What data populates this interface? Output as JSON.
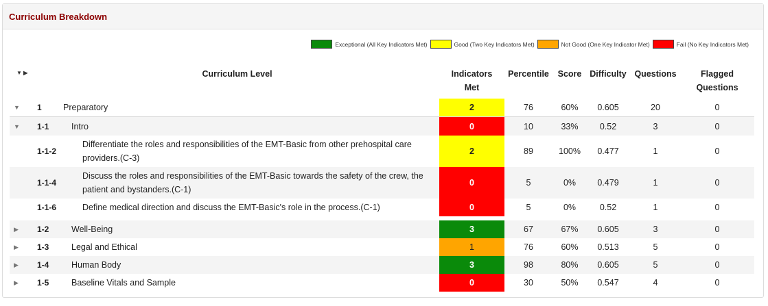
{
  "panel": {
    "title": "Curriculum Breakdown"
  },
  "legend": [
    {
      "label": "Exceptional (All Key Indicators Met)",
      "color": "#0a8a0a"
    },
    {
      "label": "Good (Two Key Indicators Met)",
      "color": "#ffff00"
    },
    {
      "label": "Not Good (One Key Indicator Met)",
      "color": "#ffa500"
    },
    {
      "label": "Fail (No Key Indicators Met)",
      "color": "#ff0000"
    }
  ],
  "header": {
    "toggle_all": "▼ ▶",
    "curriculum_level": "Curriculum Level",
    "indicators_met": "Indicators Met",
    "percentile": "Percentile",
    "score": "Score",
    "difficulty": "Difficulty",
    "questions": "Questions",
    "flagged_questions": "Flagged Questions"
  },
  "rows": [
    {
      "arrow": "▼",
      "code": "1",
      "name": "Preparatory",
      "indicators": "2",
      "color": "#ffff00",
      "text_color": "#222",
      "percentile": "76",
      "score": "60%",
      "difficulty": "0.605",
      "questions": "20",
      "flagged": "0"
    },
    {
      "arrow": "▼",
      "code": "1-1",
      "name": "Intro",
      "indicators": "0",
      "color": "#ff0000",
      "text_color": "#ffffff",
      "percentile": "10",
      "score": "33%",
      "difficulty": "0.52",
      "questions": "3",
      "flagged": "0"
    },
    {
      "arrow": "",
      "code": "1-1-2",
      "name": "Differentiate the roles and responsibilities of the EMT-Basic from other prehospital care providers.(C-3)",
      "indicators": "2",
      "color": "#ffff00",
      "text_color": "#222",
      "percentile": "89",
      "score": "100%",
      "difficulty": "0.477",
      "questions": "1",
      "flagged": "0"
    },
    {
      "arrow": "",
      "code": "1-1-4",
      "name": "Discuss the roles and responsibilities of the EMT-Basic towards the safety of the crew, the patient and bystanders.(C-1)",
      "indicators": "0",
      "color": "#ff0000",
      "text_color": "#ffffff",
      "percentile": "5",
      "score": "0%",
      "difficulty": "0.479",
      "questions": "1",
      "flagged": "0"
    },
    {
      "arrow": "",
      "code": "1-1-6",
      "name": "Define medical direction and discuss the EMT-Basic's role in the process.(C-1)",
      "indicators": "0",
      "color": "#ff0000",
      "text_color": "#ffffff",
      "percentile": "5",
      "score": "0%",
      "difficulty": "0.52",
      "questions": "1",
      "flagged": "0"
    },
    {
      "arrow": "▶",
      "code": "1-2",
      "name": "Well-Being",
      "indicators": "3",
      "color": "#0a8a0a",
      "text_color": "#ffffff",
      "percentile": "67",
      "score": "67%",
      "difficulty": "0.605",
      "questions": "3",
      "flagged": "0"
    },
    {
      "arrow": "▶",
      "code": "1-3",
      "name": "Legal and Ethical",
      "indicators": "1",
      "color": "#ffa500",
      "text_color": "#222",
      "percentile": "76",
      "score": "60%",
      "difficulty": "0.513",
      "questions": "5",
      "flagged": "0"
    },
    {
      "arrow": "▶",
      "code": "1-4",
      "name": "Human Body",
      "indicators": "3",
      "color": "#0a8a0a",
      "text_color": "#ffffff",
      "percentile": "98",
      "score": "80%",
      "difficulty": "0.605",
      "questions": "5",
      "flagged": "0"
    },
    {
      "arrow": "▶",
      "code": "1-5",
      "name": "Baseline Vitals and Sample",
      "indicators": "0",
      "color": "#ff0000",
      "text_color": "#ffffff",
      "percentile": "30",
      "score": "50%",
      "difficulty": "0.547",
      "questions": "4",
      "flagged": "0"
    }
  ]
}
